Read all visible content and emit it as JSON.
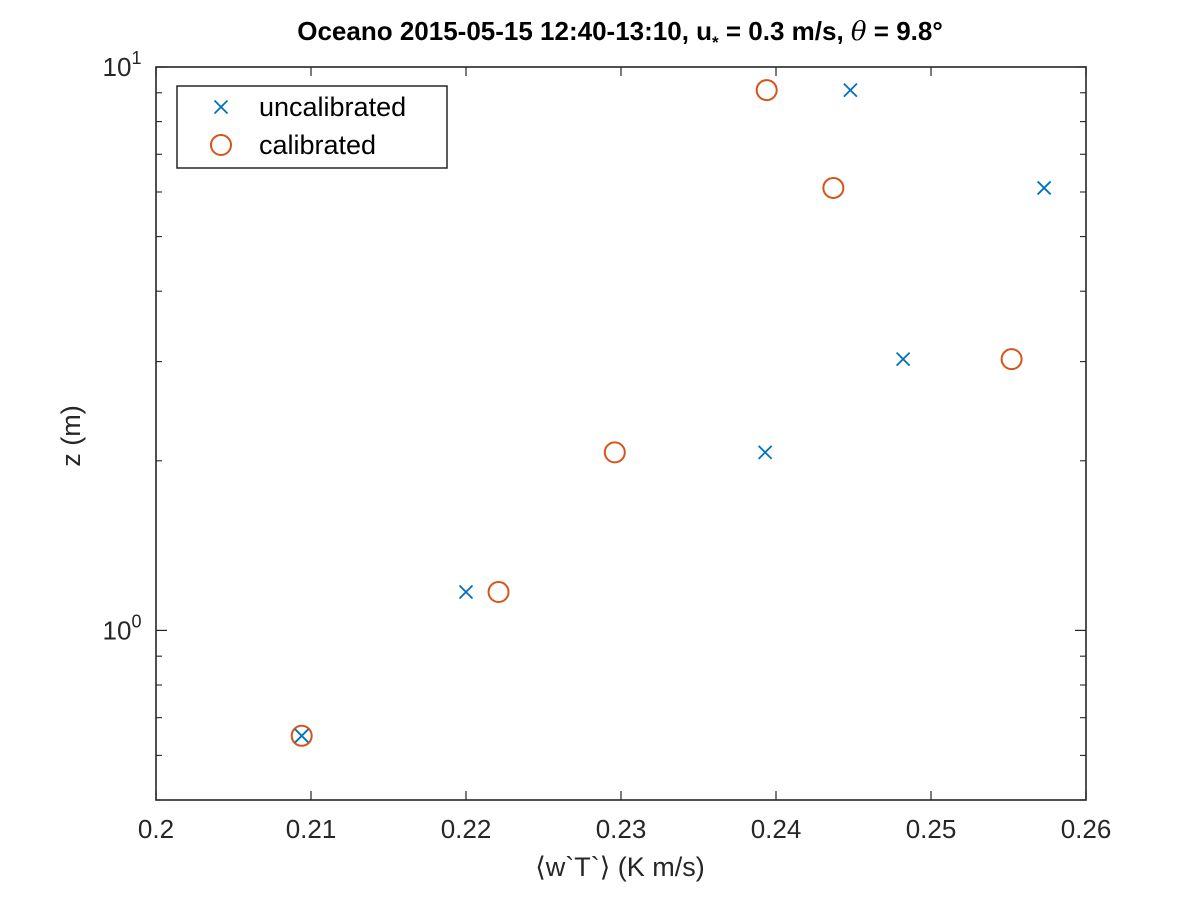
{
  "chart_data": {
    "type": "scatter",
    "title": {
      "prefix": "Oceano 2015-05-15 12:40-13:10, u",
      "sub": "*",
      "middle": " = 0.3 m/s, ",
      "theta": "θ",
      "suffix": " = 9.8°"
    },
    "xlabel": "⟨w`T`⟩ (K m/s)",
    "ylabel": "z (m)",
    "xlim": [
      0.2,
      0.26
    ],
    "ylim": [
      0.5,
      10
    ],
    "yscale": "log",
    "x_ticks": [
      {
        "value": 0.2,
        "label": "0.2"
      },
      {
        "value": 0.21,
        "label": "0.21"
      },
      {
        "value": 0.22,
        "label": "0.22"
      },
      {
        "value": 0.23,
        "label": "0.23"
      },
      {
        "value": 0.24,
        "label": "0.24"
      },
      {
        "value": 0.25,
        "label": "0.25"
      },
      {
        "value": 0.26,
        "label": "0.26"
      }
    ],
    "y_ticks": [
      {
        "value": 1,
        "base": "10",
        "exp": "0"
      },
      {
        "value": 10,
        "base": "10",
        "exp": "1"
      }
    ],
    "y_minor_ticks": [
      0.5,
      0.6,
      0.7,
      0.8,
      0.9,
      2,
      3,
      4,
      5,
      6,
      7,
      8,
      9
    ],
    "grid": false,
    "legend_position": "top-left",
    "series": [
      {
        "name": "uncalibrated",
        "marker": "x",
        "color": "#0072BD",
        "points": [
          {
            "x": 0.2094,
            "y": 0.65
          },
          {
            "x": 0.22,
            "y": 1.17
          },
          {
            "x": 0.2393,
            "y": 2.07
          },
          {
            "x": 0.2482,
            "y": 3.03
          },
          {
            "x": 0.2448,
            "y": 9.1
          },
          {
            "x": 0.2573,
            "y": 6.1
          }
        ]
      },
      {
        "name": "calibrated",
        "marker": "o",
        "color": "#D95319",
        "points": [
          {
            "x": 0.2094,
            "y": 0.65
          },
          {
            "x": 0.2221,
            "y": 1.17
          },
          {
            "x": 0.2296,
            "y": 2.07
          },
          {
            "x": 0.2552,
            "y": 3.03
          },
          {
            "x": 0.2394,
            "y": 9.1
          },
          {
            "x": 0.2437,
            "y": 6.1
          }
        ]
      }
    ]
  }
}
